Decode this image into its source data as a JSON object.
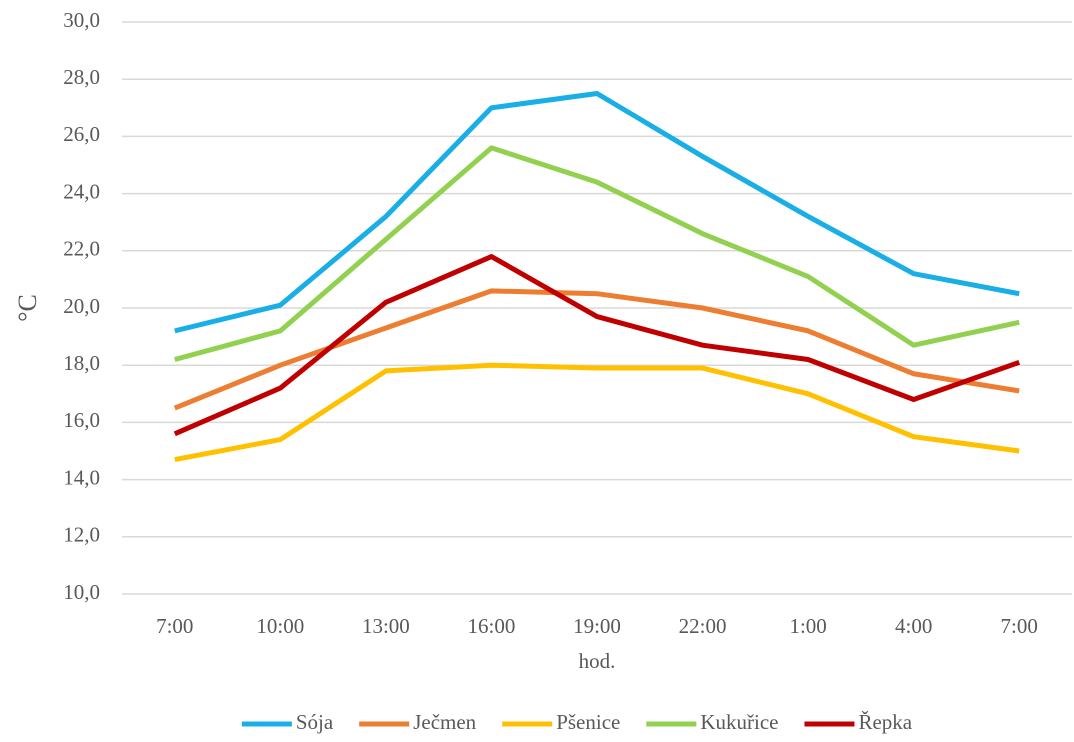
{
  "chart_data": {
    "type": "line",
    "x_label": "hod.",
    "y_label": "°C",
    "categories": [
      "7:00",
      "10:00",
      "13:00",
      "16:00",
      "19:00",
      "22:00",
      "1:00",
      "4:00",
      "7:00"
    ],
    "series": [
      {
        "name": "Sója",
        "color": "#19aee6",
        "values": [
          19.2,
          20.1,
          23.2,
          27.0,
          27.5,
          25.3,
          23.2,
          21.2,
          20.5
        ]
      },
      {
        "name": "Ječmen",
        "color": "#ed7d31",
        "values": [
          16.5,
          18.0,
          19.3,
          20.6,
          20.5,
          20.0,
          19.2,
          17.7,
          17.1
        ]
      },
      {
        "name": "Pšenice",
        "color": "#ffc000",
        "values": [
          14.7,
          15.4,
          17.8,
          18.0,
          17.9,
          17.9,
          17.0,
          15.5,
          15.0
        ]
      },
      {
        "name": "Kukuřice",
        "color": "#92d050",
        "values": [
          18.2,
          19.2,
          22.4,
          25.6,
          24.4,
          22.6,
          21.1,
          18.7,
          19.5
        ]
      },
      {
        "name": "Řepka",
        "color": "#c00000",
        "values": [
          15.6,
          17.2,
          20.2,
          21.8,
          19.7,
          18.7,
          18.2,
          16.8,
          18.1
        ]
      }
    ],
    "ylim": [
      10,
      30
    ],
    "yticks": [
      {
        "value": 10,
        "label": "10,0"
      },
      {
        "value": 12,
        "label": "12,0"
      },
      {
        "value": 14,
        "label": "14,0"
      },
      {
        "value": 16,
        "label": "16,0"
      },
      {
        "value": 18,
        "label": "18,0"
      },
      {
        "value": 20,
        "label": "20,0"
      },
      {
        "value": 22,
        "label": "22,0"
      },
      {
        "value": 24,
        "label": "24,0"
      },
      {
        "value": 26,
        "label": "26,0"
      },
      {
        "value": 28,
        "label": "28,0"
      },
      {
        "value": 30,
        "label": "30,0"
      }
    ],
    "grid": true,
    "legend": "bottom"
  }
}
